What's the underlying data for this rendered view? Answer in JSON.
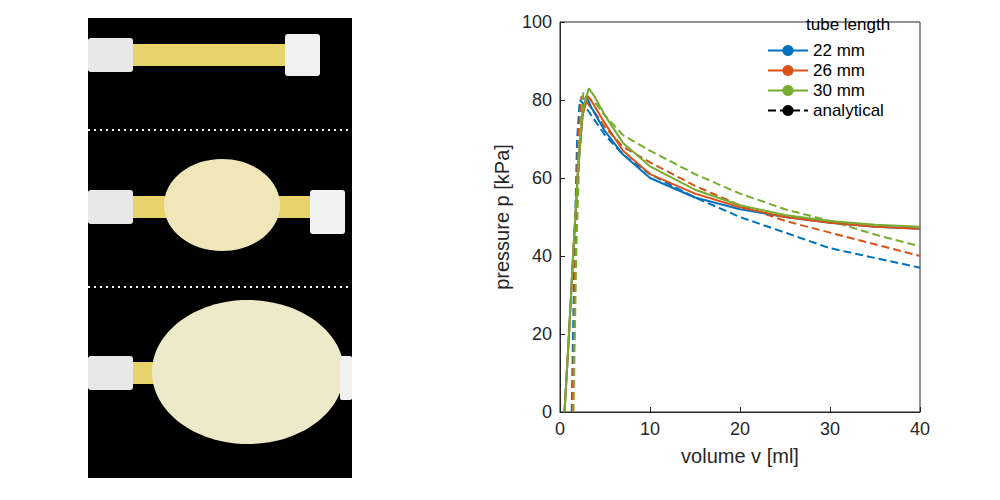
{
  "chart_data": {
    "type": "line",
    "xlabel": "volume v [ml]",
    "ylabel": "pressure p [kPa]",
    "xlim": [
      0,
      40
    ],
    "xticks": [
      0,
      10,
      20,
      30,
      40
    ],
    "ylim": [
      0,
      100
    ],
    "yticks": [
      0,
      20,
      40,
      60,
      80,
      100
    ],
    "grid": false,
    "legend": "upper right",
    "legend_title": "tube length",
    "series": [
      {
        "name": "22 mm",
        "color": "#0072bd",
        "line_style": "solid",
        "x": [
          0.5,
          1,
          1.5,
          2,
          2.5,
          2.9,
          3.5,
          5,
          7,
          10,
          15,
          20,
          25,
          30,
          35,
          40
        ],
        "values": [
          0,
          20,
          42,
          62,
          76,
          81,
          78,
          72,
          66,
          60,
          55,
          52,
          50,
          48.5,
          47.5,
          47
        ]
      },
      {
        "name": "26 mm",
        "color": "#d95319",
        "line_style": "solid",
        "x": [
          0.5,
          1,
          1.5,
          2,
          2.5,
          3.1,
          3.7,
          5,
          7,
          10,
          15,
          20,
          25,
          30,
          35,
          40
        ],
        "values": [
          0,
          20,
          42,
          62,
          76,
          81,
          79,
          74,
          67,
          61,
          56,
          52.5,
          50,
          48.5,
          47.5,
          47
        ]
      },
      {
        "name": "30 mm",
        "color": "#77ac30",
        "line_style": "solid",
        "x": [
          0.5,
          1,
          1.5,
          2,
          2.5,
          3.2,
          3.8,
          5,
          7,
          10,
          15,
          20,
          25,
          30,
          35,
          40
        ],
        "values": [
          0,
          20,
          42,
          62,
          77,
          83,
          81,
          76,
          69,
          63,
          57,
          53,
          50.5,
          49,
          48,
          47.5
        ]
      },
      {
        "name": "analytical",
        "color": "#0072bd",
        "line_style": "dashed",
        "x": [
          1.3,
          1.6,
          1.9,
          2.2,
          2.6,
          3.5,
          5,
          7,
          10,
          15,
          20,
          25,
          30,
          35,
          40
        ],
        "values": [
          0,
          40,
          70,
          80,
          79,
          76,
          71,
          66,
          61,
          55,
          50,
          46,
          42,
          39.5,
          37
        ]
      },
      {
        "name": "analytical",
        "color": "#d95319",
        "line_style": "dashed",
        "x": [
          1.4,
          1.7,
          2.0,
          2.4,
          2.8,
          3.8,
          5,
          7,
          10,
          15,
          20,
          25,
          30,
          35,
          40
        ],
        "values": [
          0,
          40,
          70,
          81,
          80,
          77,
          73,
          68,
          64,
          58,
          53,
          49,
          46,
          43,
          40
        ]
      },
      {
        "name": "analytical",
        "color": "#77ac30",
        "line_style": "dashed",
        "x": [
          1.5,
          1.8,
          2.2,
          2.6,
          3.0,
          4,
          5,
          7,
          10,
          15,
          20,
          25,
          30,
          35,
          40
        ],
        "values": [
          0,
          40,
          70,
          82,
          81,
          79,
          76,
          71,
          67,
          61,
          56,
          52,
          49,
          45.5,
          42.5
        ]
      }
    ]
  }
}
